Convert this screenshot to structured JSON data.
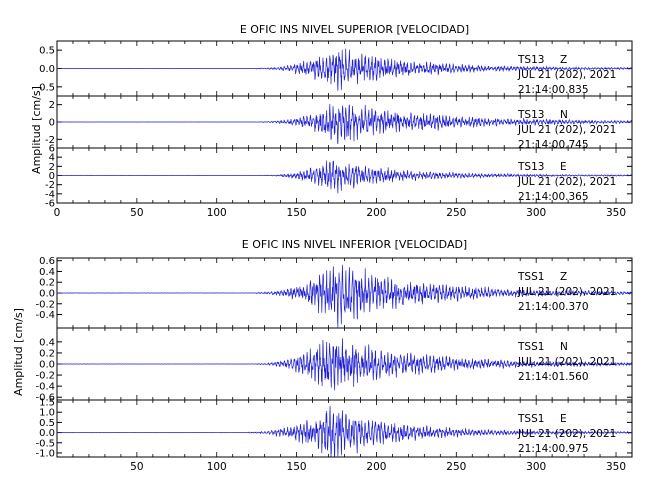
{
  "chart_data": [
    {
      "type": "line",
      "title": "E OFIC INS NIVEL SUPERIOR [VELOCIDAD]",
      "ylabel": "Amplitud [cm/s]",
      "xlim": [
        0,
        360
      ],
      "xticks": [
        "0",
        "50",
        "100",
        "150",
        "200",
        "250",
        "300",
        "350"
      ],
      "grid": false,
      "traces": [
        {
          "station": "TS13",
          "component": "Z",
          "date": "JUL 21 (202), 2021",
          "time": "21:14:00.835",
          "ylim": [
            -0.75,
            0.75
          ],
          "yticks": [
            "0.5",
            "0.0",
            "-0.5"
          ],
          "onset": 125,
          "peak_time": 175,
          "peak": 0.55,
          "decay": 45,
          "stop": 360
        },
        {
          "station": "TS13",
          "component": "N",
          "date": "JUL 21 (202), 2021",
          "time": "21:14:00.745",
          "ylim": [
            -3,
            3
          ],
          "yticks": [
            "2",
            "0",
            "-2"
          ],
          "onset": 128,
          "peak_time": 176,
          "peak": 2.4,
          "decay": 55,
          "stop": 360
        },
        {
          "station": "TS13",
          "component": "E",
          "date": "JUL 21 (202), 2021",
          "time": "21:14:00.365",
          "ylim": [
            -6,
            6
          ],
          "yticks": [
            "6",
            "4",
            "2",
            "0",
            "-2",
            "-4",
            "-6"
          ],
          "onset": 130,
          "peak_time": 172,
          "peak": 3.5,
          "decay": 40,
          "stop": 360
        }
      ]
    },
    {
      "type": "line",
      "title": "E OFIC INS NIVEL INFERIOR [VELOCIDAD]",
      "ylabel": "Amplitud [cm/s]",
      "xlim": [
        0,
        360
      ],
      "xticks": [
        "50",
        "100",
        "150",
        "200",
        "250",
        "300",
        "350"
      ],
      "grid": false,
      "traces": [
        {
          "station": "TSS1",
          "component": "Z",
          "date": "JUL 21 (202), 2021",
          "time": "21:14:00.370",
          "ylim": [
            -0.65,
            0.65
          ],
          "yticks": [
            "0.6",
            "0.4",
            "0.2",
            "0.0",
            "-0.2",
            "-0.4"
          ],
          "onset": 125,
          "peak_time": 174,
          "peak": 0.55,
          "decay": 50,
          "stop": 360
        },
        {
          "station": "TSS1",
          "component": "N",
          "date": "JUL 21 (202), 2021",
          "time": "21:14:01.560",
          "ylim": [
            -0.65,
            0.65
          ],
          "yticks": [
            "0.4",
            "0.2",
            "0.0",
            "-0.2",
            "-0.4",
            "-0.6"
          ],
          "onset": 125,
          "peak_time": 170,
          "peak": 0.5,
          "decay": 50,
          "stop": 360
        },
        {
          "station": "TSS1",
          "component": "E",
          "date": "JUL 21 (202), 2021",
          "time": "21:14:00.975",
          "ylim": [
            -1.2,
            1.6
          ],
          "yticks": [
            "1.5",
            "1.0",
            "0.5",
            "0.0",
            "-0.5",
            "-1.0"
          ],
          "onset": 120,
          "peak_time": 172,
          "peak": 1.3,
          "decay": 38,
          "stop": 360
        }
      ]
    }
  ],
  "colors": {
    "trace": "#1f1fd6",
    "axes": "#000000",
    "background": "#ffffff"
  }
}
